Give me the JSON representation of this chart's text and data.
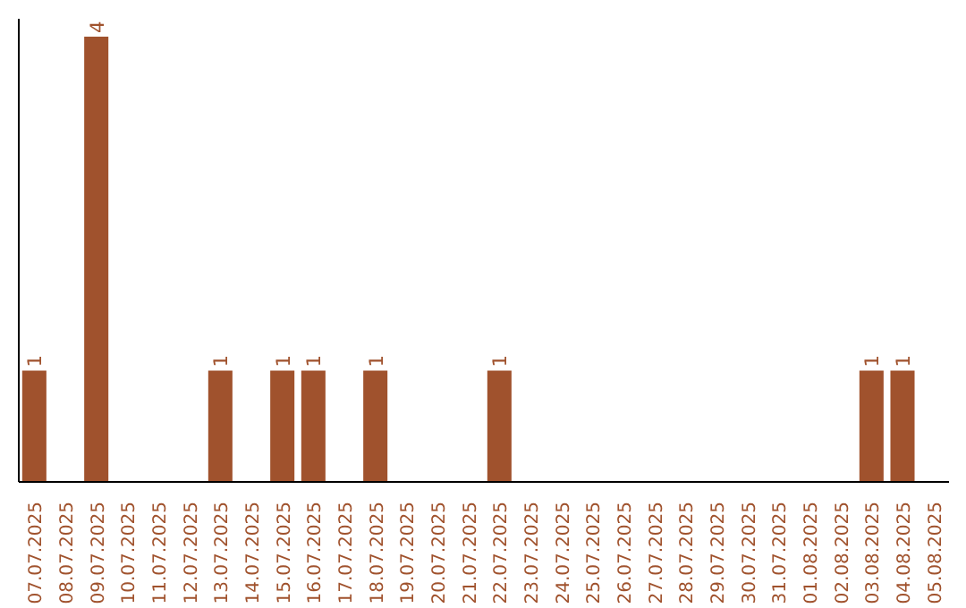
{
  "chart_data": {
    "type": "bar",
    "categories": [
      "07.07.2025",
      "08.07.2025",
      "09.07.2025",
      "10.07.2025",
      "11.07.2025",
      "12.07.2025",
      "13.07.2025",
      "14.07.2025",
      "15.07.2025",
      "16.07.2025",
      "17.07.2025",
      "18.07.2025",
      "19.07.2025",
      "20.07.2025",
      "21.07.2025",
      "22.07.2025",
      "23.07.2025",
      "24.07.2025",
      "25.07.2025",
      "26.07.2025",
      "27.07.2025",
      "28.07.2025",
      "29.07.2025",
      "30.07.2025",
      "31.07.2025",
      "01.08.2025",
      "02.08.2025",
      "03.08.2025",
      "04.08.2025",
      "05.08.2025"
    ],
    "values": [
      1,
      0,
      4,
      0,
      0,
      0,
      1,
      0,
      1,
      1,
      0,
      1,
      0,
      0,
      0,
      1,
      0,
      0,
      0,
      0,
      0,
      0,
      0,
      0,
      0,
      0,
      0,
      1,
      1,
      0
    ],
    "value_labels": [
      "1",
      null,
      "4",
      null,
      null,
      null,
      "1",
      null,
      "1",
      "1",
      null,
      "1",
      null,
      null,
      null,
      "1",
      null,
      null,
      null,
      null,
      null,
      null,
      null,
      null,
      null,
      null,
      null,
      "1",
      "1",
      null
    ],
    "color": "#a0522d",
    "ylim": [
      0,
      4.16
    ],
    "grid": false
  }
}
